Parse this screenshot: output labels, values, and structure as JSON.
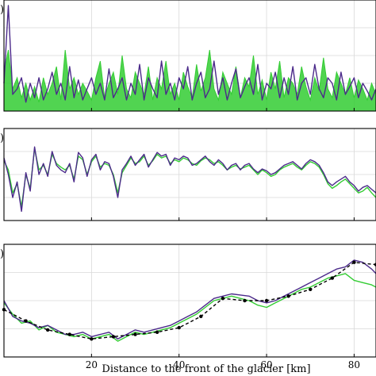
{
  "figure": {
    "xlabel": "Distance to the front of the glacier [km]",
    "panel_letters": [
      ")",
      ")",
      ")"
    ]
  },
  "chart_data": [
    {
      "type": "area",
      "xlim": [
        0,
        85
      ],
      "ylim": [
        0,
        1
      ],
      "grid": true,
      "series": [
        {
          "color": "#33cc33",
          "x": [
            0,
            1,
            2,
            3,
            4,
            5,
            6,
            7,
            8,
            9,
            10,
            11,
            12,
            13,
            14,
            15,
            16,
            17,
            18,
            19,
            20,
            21,
            22,
            23,
            24,
            25,
            26,
            27,
            28,
            29,
            30,
            31,
            32,
            33,
            34,
            35,
            36,
            37,
            38,
            39,
            40,
            41,
            42,
            43,
            44,
            45,
            46,
            47,
            48,
            49,
            50,
            51,
            52,
            53,
            54,
            55,
            56,
            57,
            58,
            59,
            60,
            61,
            62,
            63,
            64,
            65,
            66,
            67,
            68,
            69,
            70,
            71,
            72,
            73,
            74,
            75,
            76,
            77,
            78,
            79,
            80,
            81,
            82,
            83,
            84,
            85
          ],
          "values": [
            0.35,
            0.55,
            0.2,
            0.3,
            0.12,
            0.25,
            0.1,
            0.22,
            0.08,
            0.3,
            0.15,
            0.25,
            0.4,
            0.1,
            0.55,
            0.2,
            0.3,
            0.15,
            0.25,
            0.18,
            0.1,
            0.3,
            0.45,
            0.12,
            0.25,
            0.35,
            0.15,
            0.5,
            0.2,
            0.12,
            0.35,
            0.25,
            0.15,
            0.4,
            0.1,
            0.3,
            0.2,
            0.45,
            0.15,
            0.25,
            0.1,
            0.35,
            0.22,
            0.12,
            0.42,
            0.18,
            0.3,
            0.55,
            0.2,
            0.1,
            0.35,
            0.25,
            0.15,
            0.4,
            0.12,
            0.3,
            0.22,
            0.5,
            0.15,
            0.28,
            0.1,
            0.35,
            0.2,
            0.45,
            0.12,
            0.3,
            0.25,
            0.15,
            0.4,
            0.22,
            0.1,
            0.3,
            0.18,
            0.48,
            0.2,
            0.12,
            0.35,
            0.25,
            0.15,
            0.3,
            0.12,
            0.28,
            0.2,
            0.1,
            0.25,
            0.15
          ]
        },
        {
          "color": "#4b2a8a",
          "x": [
            0,
            1,
            2,
            3,
            4,
            5,
            6,
            7,
            8,
            9,
            10,
            11,
            12,
            13,
            14,
            15,
            16,
            17,
            18,
            19,
            20,
            21,
            22,
            23,
            24,
            25,
            26,
            27,
            28,
            29,
            30,
            31,
            32,
            33,
            34,
            35,
            36,
            37,
            38,
            39,
            40,
            41,
            42,
            43,
            44,
            45,
            46,
            47,
            48,
            49,
            50,
            51,
            52,
            53,
            54,
            55,
            56,
            57,
            58,
            59,
            60,
            61,
            62,
            63,
            64,
            65,
            66,
            67,
            68,
            69,
            70,
            71,
            72,
            73,
            74,
            75,
            76,
            77,
            78,
            79,
            80,
            81,
            82,
            83,
            84,
            85
          ],
          "values": [
            0.25,
            0.95,
            0.15,
            0.2,
            0.3,
            0.08,
            0.25,
            0.12,
            0.3,
            0.1,
            0.2,
            0.35,
            0.15,
            0.25,
            0.1,
            0.4,
            0.12,
            0.28,
            0.1,
            0.2,
            0.3,
            0.15,
            0.25,
            0.1,
            0.38,
            0.12,
            0.2,
            0.3,
            0.1,
            0.25,
            0.15,
            0.42,
            0.1,
            0.3,
            0.2,
            0.12,
            0.45,
            0.15,
            0.25,
            0.1,
            0.3,
            0.2,
            0.4,
            0.1,
            0.25,
            0.35,
            0.12,
            0.2,
            0.45,
            0.15,
            0.3,
            0.1,
            0.25,
            0.38,
            0.12,
            0.22,
            0.3,
            0.15,
            0.42,
            0.1,
            0.25,
            0.2,
            0.35,
            0.12,
            0.3,
            0.15,
            0.4,
            0.1,
            0.25,
            0.3,
            0.15,
            0.42,
            0.2,
            0.12,
            0.3,
            0.25,
            0.1,
            0.35,
            0.15,
            0.22,
            0.3,
            0.12,
            0.25,
            0.18,
            0.1,
            0.2
          ]
        }
      ]
    },
    {
      "type": "line",
      "xlim": [
        0,
        85
      ],
      "ylim": [
        0,
        1
      ],
      "grid": true,
      "series": [
        {
          "color": "#33cc33",
          "x": [
            0,
            1,
            2,
            3,
            4,
            5,
            6,
            7,
            8,
            9,
            10,
            11,
            12,
            13,
            14,
            15,
            16,
            17,
            18,
            19,
            20,
            21,
            22,
            23,
            24,
            25,
            26,
            27,
            28,
            29,
            30,
            31,
            32,
            33,
            34,
            35,
            36,
            37,
            38,
            39,
            40,
            41,
            42,
            43,
            44,
            45,
            46,
            47,
            48,
            49,
            50,
            51,
            52,
            53,
            54,
            55,
            56,
            57,
            58,
            59,
            60,
            61,
            62,
            63,
            64,
            65,
            66,
            67,
            68,
            69,
            70,
            71,
            72,
            73,
            74,
            75,
            76,
            77,
            78,
            79,
            80,
            81,
            82,
            83,
            84,
            85
          ],
          "values": [
            0.65,
            0.55,
            0.3,
            0.4,
            0.15,
            0.5,
            0.35,
            0.78,
            0.55,
            0.6,
            0.5,
            0.72,
            0.62,
            0.58,
            0.55,
            0.6,
            0.45,
            0.7,
            0.66,
            0.5,
            0.64,
            0.7,
            0.58,
            0.62,
            0.6,
            0.5,
            0.3,
            0.52,
            0.6,
            0.68,
            0.62,
            0.64,
            0.7,
            0.6,
            0.65,
            0.72,
            0.68,
            0.7,
            0.62,
            0.66,
            0.64,
            0.68,
            0.66,
            0.62,
            0.6,
            0.65,
            0.68,
            0.66,
            0.62,
            0.64,
            0.6,
            0.55,
            0.58,
            0.6,
            0.56,
            0.58,
            0.6,
            0.55,
            0.5,
            0.55,
            0.52,
            0.48,
            0.5,
            0.55,
            0.58,
            0.6,
            0.62,
            0.58,
            0.55,
            0.6,
            0.64,
            0.62,
            0.58,
            0.5,
            0.4,
            0.35,
            0.38,
            0.42,
            0.45,
            0.4,
            0.35,
            0.3,
            0.32,
            0.36,
            0.3,
            0.25
          ]
        },
        {
          "color": "#4b2a8a",
          "x": [
            0,
            1,
            2,
            3,
            4,
            5,
            6,
            7,
            8,
            9,
            10,
            11,
            12,
            13,
            14,
            15,
            16,
            17,
            18,
            19,
            20,
            21,
            22,
            23,
            24,
            25,
            26,
            27,
            28,
            29,
            30,
            31,
            32,
            33,
            34,
            35,
            36,
            37,
            38,
            39,
            40,
            41,
            42,
            43,
            44,
            45,
            46,
            47,
            48,
            49,
            50,
            51,
            52,
            53,
            54,
            55,
            56,
            57,
            58,
            59,
            60,
            61,
            62,
            63,
            64,
            65,
            66,
            67,
            68,
            69,
            70,
            71,
            72,
            73,
            74,
            75,
            76,
            77,
            78,
            79,
            80,
            81,
            82,
            83,
            84,
            85
          ],
          "values": [
            0.68,
            0.5,
            0.25,
            0.42,
            0.1,
            0.52,
            0.32,
            0.8,
            0.5,
            0.62,
            0.48,
            0.75,
            0.6,
            0.55,
            0.52,
            0.62,
            0.42,
            0.74,
            0.68,
            0.48,
            0.66,
            0.72,
            0.55,
            0.64,
            0.62,
            0.48,
            0.25,
            0.55,
            0.62,
            0.7,
            0.6,
            0.66,
            0.72,
            0.58,
            0.66,
            0.74,
            0.7,
            0.72,
            0.6,
            0.68,
            0.66,
            0.7,
            0.68,
            0.6,
            0.62,
            0.66,
            0.7,
            0.64,
            0.6,
            0.66,
            0.62,
            0.55,
            0.6,
            0.62,
            0.55,
            0.6,
            0.62,
            0.56,
            0.52,
            0.56,
            0.54,
            0.5,
            0.52,
            0.56,
            0.6,
            0.62,
            0.64,
            0.6,
            0.56,
            0.62,
            0.66,
            0.64,
            0.6,
            0.52,
            0.42,
            0.38,
            0.42,
            0.45,
            0.48,
            0.42,
            0.38,
            0.32,
            0.36,
            0.38,
            0.34,
            0.3
          ]
        }
      ]
    },
    {
      "type": "line",
      "xlim": [
        0,
        85
      ],
      "ylim": [
        0,
        1
      ],
      "grid": true,
      "series": [
        {
          "color": "#33cc33",
          "x": [
            0,
            2,
            4,
            6,
            8,
            10,
            12,
            14,
            16,
            18,
            20,
            22,
            24,
            26,
            28,
            30,
            32,
            34,
            36,
            38,
            40,
            42,
            44,
            46,
            48,
            50,
            52,
            54,
            56,
            58,
            60,
            62,
            64,
            66,
            68,
            70,
            72,
            74,
            76,
            78,
            80,
            82,
            84,
            85
          ],
          "values": [
            0.48,
            0.38,
            0.3,
            0.32,
            0.24,
            0.28,
            0.22,
            0.2,
            0.18,
            0.2,
            0.16,
            0.18,
            0.2,
            0.14,
            0.18,
            0.22,
            0.2,
            0.22,
            0.24,
            0.26,
            0.3,
            0.34,
            0.38,
            0.44,
            0.5,
            0.52,
            0.54,
            0.52,
            0.5,
            0.46,
            0.44,
            0.48,
            0.52,
            0.56,
            0.6,
            0.62,
            0.66,
            0.7,
            0.72,
            0.74,
            0.68,
            0.66,
            0.64,
            0.62
          ]
        },
        {
          "color": "#4b2a8a",
          "x": [
            0,
            2,
            4,
            6,
            8,
            10,
            12,
            14,
            16,
            18,
            20,
            22,
            24,
            26,
            28,
            30,
            32,
            34,
            36,
            38,
            40,
            42,
            44,
            46,
            48,
            50,
            52,
            54,
            56,
            58,
            60,
            62,
            64,
            66,
            68,
            70,
            72,
            74,
            76,
            78,
            80,
            82,
            84,
            85
          ],
          "values": [
            0.5,
            0.36,
            0.32,
            0.3,
            0.26,
            0.28,
            0.24,
            0.2,
            0.2,
            0.22,
            0.18,
            0.2,
            0.22,
            0.16,
            0.2,
            0.24,
            0.22,
            0.24,
            0.26,
            0.28,
            0.32,
            0.36,
            0.4,
            0.46,
            0.52,
            0.54,
            0.56,
            0.55,
            0.54,
            0.5,
            0.48,
            0.5,
            0.54,
            0.58,
            0.62,
            0.66,
            0.7,
            0.74,
            0.78,
            0.8,
            0.86,
            0.84,
            0.78,
            0.74
          ]
        },
        {
          "color": "#000000",
          "dashed": true,
          "markers": true,
          "x": [
            0,
            5,
            10,
            15,
            20,
            25,
            30,
            35,
            40,
            45,
            50,
            55,
            60,
            65,
            70,
            75,
            80,
            85
          ],
          "values": [
            0.42,
            0.32,
            0.24,
            0.2,
            0.16,
            0.18,
            0.2,
            0.22,
            0.26,
            0.36,
            0.52,
            0.5,
            0.5,
            0.54,
            0.6,
            0.7,
            0.84,
            0.82
          ]
        }
      ]
    }
  ],
  "xaxis": {
    "ticks": [
      20,
      40,
      60,
      80
    ],
    "tick_labels": [
      "20",
      "40",
      "60",
      "80"
    ]
  }
}
